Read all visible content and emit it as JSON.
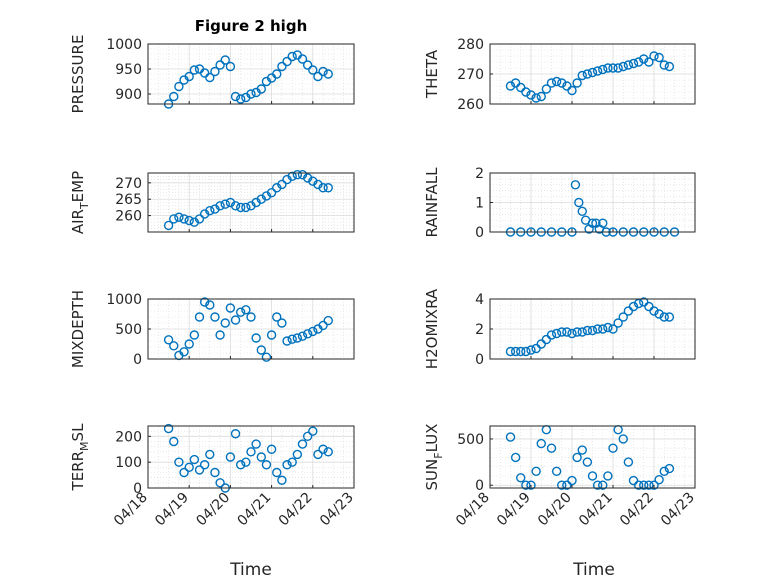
{
  "figure": {
    "title": "Figure 2 high",
    "xlabel": "Time",
    "x_tick_labels": [
      "04/18",
      "04/19",
      "04/20",
      "04/21",
      "04/22",
      "04/23"
    ],
    "marker": "open-circle",
    "series_color": "#0072BD"
  },
  "chart_data": [
    {
      "type": "scatter",
      "panel": "left-row-1",
      "ylabel": "PRESSURE",
      "ylim": [
        880,
        1000
      ],
      "yticks": [
        900,
        950,
        1000
      ],
      "grid": true,
      "x": [
        "04/18 12:00",
        "04/18 15:00",
        "04/18 18:00",
        "04/18 21:00",
        "04/19 00:00",
        "04/19 03:00",
        "04/19 06:00",
        "04/19 09:00",
        "04/19 12:00",
        "04/19 15:00",
        "04/19 18:00",
        "04/19 21:00",
        "04/20 00:00",
        "04/20 03:00",
        "04/20 06:00",
        "04/20 09:00",
        "04/20 12:00",
        "04/20 15:00",
        "04/20 18:00",
        "04/20 21:00",
        "04/21 00:00",
        "04/21 03:00",
        "04/21 06:00",
        "04/21 09:00",
        "04/21 12:00",
        "04/21 15:00",
        "04/21 18:00",
        "04/21 21:00",
        "04/22 00:00",
        "04/22 03:00",
        "04/22 06:00",
        "04/22 09:00"
      ],
      "y": [
        880,
        895,
        915,
        928,
        935,
        948,
        950,
        942,
        933,
        945,
        958,
        968,
        955,
        895,
        890,
        893,
        900,
        903,
        910,
        925,
        932,
        940,
        955,
        965,
        975,
        978,
        970,
        958,
        948,
        935,
        945,
        940
      ]
    },
    {
      "type": "scatter",
      "panel": "right-row-1",
      "ylabel": "THETA",
      "ylim": [
        260,
        280
      ],
      "yticks": [
        260,
        270,
        280
      ],
      "grid": true,
      "x": [
        "04/18 12:00",
        "04/18 15:00",
        "04/18 18:00",
        "04/18 21:00",
        "04/19 00:00",
        "04/19 03:00",
        "04/19 06:00",
        "04/19 09:00",
        "04/19 12:00",
        "04/19 15:00",
        "04/19 18:00",
        "04/19 21:00",
        "04/20 00:00",
        "04/20 03:00",
        "04/20 06:00",
        "04/20 09:00",
        "04/20 12:00",
        "04/20 15:00",
        "04/20 18:00",
        "04/20 21:00",
        "04/21 00:00",
        "04/21 03:00",
        "04/21 06:00",
        "04/21 09:00",
        "04/21 12:00",
        "04/21 15:00",
        "04/21 18:00",
        "04/21 21:00",
        "04/22 00:00",
        "04/22 03:00",
        "04/22 06:00",
        "04/22 09:00"
      ],
      "y": [
        266,
        267,
        265.5,
        264,
        263,
        262,
        262.5,
        265,
        267,
        267.5,
        267,
        266,
        264.5,
        267,
        269.5,
        270,
        270.5,
        271,
        271.5,
        272,
        272,
        272,
        272.5,
        273,
        273.5,
        274,
        275,
        274,
        276,
        275.5,
        273,
        272.5
      ]
    },
    {
      "type": "scatter",
      "panel": "left-row-2",
      "ylabel_parts": [
        "AIR",
        "T",
        "EMP"
      ],
      "ylim": [
        255,
        273
      ],
      "yticks": [
        260,
        265,
        270
      ],
      "grid": true,
      "x": [
        "04/18 12:00",
        "04/18 15:00",
        "04/18 18:00",
        "04/18 21:00",
        "04/19 00:00",
        "04/19 03:00",
        "04/19 06:00",
        "04/19 09:00",
        "04/19 12:00",
        "04/19 15:00",
        "04/19 18:00",
        "04/19 21:00",
        "04/20 00:00",
        "04/20 03:00",
        "04/20 06:00",
        "04/20 09:00",
        "04/20 12:00",
        "04/20 15:00",
        "04/20 18:00",
        "04/20 21:00",
        "04/21 00:00",
        "04/21 03:00",
        "04/21 06:00",
        "04/21 09:00",
        "04/21 12:00",
        "04/21 15:00",
        "04/21 18:00",
        "04/21 21:00",
        "04/22 00:00",
        "04/22 03:00",
        "04/22 06:00",
        "04/22 09:00"
      ],
      "y": [
        257,
        259,
        259.5,
        259,
        258.5,
        258,
        259,
        260.5,
        261.5,
        262,
        263,
        263.5,
        264,
        263,
        262.5,
        262.5,
        263,
        264,
        265,
        266,
        267,
        268.5,
        269.5,
        271,
        272,
        272.5,
        272.5,
        271.5,
        270.5,
        269.5,
        268.5,
        268.5
      ]
    },
    {
      "type": "scatter",
      "panel": "right-row-2",
      "ylabel": "RAINFALL",
      "ylim": [
        0,
        2
      ],
      "yticks": [
        0,
        1,
        2
      ],
      "grid": true,
      "x": [
        "04/18 12:00",
        "04/18 18:00",
        "04/19 00:00",
        "04/19 06:00",
        "04/19 12:00",
        "04/19 18:00",
        "04/20 00:00",
        "04/20 02:00",
        "04/20 04:00",
        "04/20 06:00",
        "04/20 08:00",
        "04/20 10:00",
        "04/20 12:00",
        "04/20 14:00",
        "04/20 16:00",
        "04/20 18:00",
        "04/20 20:00",
        "04/21 00:00",
        "04/21 06:00",
        "04/21 12:00",
        "04/21 18:00",
        "04/22 00:00",
        "04/22 06:00",
        "04/22 12:00"
      ],
      "y": [
        0,
        0,
        0,
        0,
        0,
        0,
        0,
        1.6,
        1.0,
        0.7,
        0.4,
        0.1,
        0.3,
        0.3,
        0.1,
        0.3,
        0,
        0,
        0,
        0,
        0,
        0,
        0,
        0
      ]
    },
    {
      "type": "scatter",
      "panel": "left-row-3",
      "ylabel": "MIXDEPTH",
      "ylim": [
        0,
        1000
      ],
      "yticks": [
        0,
        500,
        1000
      ],
      "grid": true,
      "x": [
        "04/18 12:00",
        "04/18 15:00",
        "04/18 18:00",
        "04/18 21:00",
        "04/19 00:00",
        "04/19 03:00",
        "04/19 06:00",
        "04/19 09:00",
        "04/19 12:00",
        "04/19 15:00",
        "04/19 18:00",
        "04/19 21:00",
        "04/20 00:00",
        "04/20 03:00",
        "04/20 06:00",
        "04/20 09:00",
        "04/20 12:00",
        "04/20 15:00",
        "04/20 18:00",
        "04/20 21:00",
        "04/21 00:00",
        "04/21 03:00",
        "04/21 06:00",
        "04/21 09:00",
        "04/21 12:00",
        "04/21 15:00",
        "04/21 18:00",
        "04/21 21:00",
        "04/22 00:00",
        "04/22 03:00",
        "04/22 06:00",
        "04/22 09:00"
      ],
      "y": [
        320,
        220,
        60,
        120,
        250,
        400,
        700,
        950,
        900,
        700,
        400,
        600,
        850,
        650,
        780,
        820,
        700,
        350,
        150,
        30,
        400,
        700,
        600,
        300,
        330,
        350,
        380,
        420,
        460,
        500,
        560,
        640
      ]
    },
    {
      "type": "scatter",
      "panel": "right-row-3",
      "ylabel": "H2OMIXRA",
      "ylim": [
        0,
        4
      ],
      "yticks": [
        0,
        2,
        4
      ],
      "grid": true,
      "x": [
        "04/18 12:00",
        "04/18 15:00",
        "04/18 18:00",
        "04/18 21:00",
        "04/19 00:00",
        "04/19 03:00",
        "04/19 06:00",
        "04/19 09:00",
        "04/19 12:00",
        "04/19 15:00",
        "04/19 18:00",
        "04/19 21:00",
        "04/20 00:00",
        "04/20 03:00",
        "04/20 06:00",
        "04/20 09:00",
        "04/20 12:00",
        "04/20 15:00",
        "04/20 18:00",
        "04/20 21:00",
        "04/21 00:00",
        "04/21 03:00",
        "04/21 06:00",
        "04/21 09:00",
        "04/21 12:00",
        "04/21 15:00",
        "04/21 18:00",
        "04/21 21:00",
        "04/22 00:00",
        "04/22 03:00",
        "04/22 06:00",
        "04/22 09:00"
      ],
      "y": [
        0.5,
        0.5,
        0.5,
        0.5,
        0.6,
        0.7,
        1.0,
        1.3,
        1.6,
        1.7,
        1.8,
        1.8,
        1.7,
        1.8,
        1.8,
        1.9,
        1.9,
        2.0,
        2.0,
        2.1,
        2.0,
        2.4,
        2.8,
        3.2,
        3.5,
        3.7,
        3.8,
        3.5,
        3.2,
        3.0,
        2.8,
        2.8
      ]
    },
    {
      "type": "scatter",
      "panel": "left-row-4",
      "ylabel_parts": [
        "TERR",
        "M",
        "SL"
      ],
      "ylim": [
        0,
        240
      ],
      "yticks": [
        0,
        100,
        200
      ],
      "grid": true,
      "x": [
        "04/18 12:00",
        "04/18 15:00",
        "04/18 18:00",
        "04/18 21:00",
        "04/19 00:00",
        "04/19 03:00",
        "04/19 06:00",
        "04/19 09:00",
        "04/19 12:00",
        "04/19 15:00",
        "04/19 18:00",
        "04/19 21:00",
        "04/20 00:00",
        "04/20 03:00",
        "04/20 06:00",
        "04/20 09:00",
        "04/20 12:00",
        "04/20 15:00",
        "04/20 18:00",
        "04/20 21:00",
        "04/21 00:00",
        "04/21 03:00",
        "04/21 06:00",
        "04/21 09:00",
        "04/21 12:00",
        "04/21 15:00",
        "04/21 18:00",
        "04/21 21:00",
        "04/22 00:00",
        "04/22 03:00",
        "04/22 06:00",
        "04/22 09:00"
      ],
      "y": [
        230,
        180,
        100,
        60,
        80,
        110,
        70,
        90,
        130,
        60,
        20,
        0,
        120,
        210,
        90,
        100,
        140,
        170,
        120,
        90,
        150,
        60,
        30,
        90,
        100,
        130,
        170,
        200,
        220,
        130,
        150,
        140
      ]
    },
    {
      "type": "scatter",
      "panel": "right-row-4",
      "ylabel_parts": [
        "SUN",
        "F",
        "LUX"
      ],
      "ylim": [
        -30,
        640
      ],
      "yticks": [
        0,
        500
      ],
      "grid": true,
      "x": [
        "04/18 12:00",
        "04/18 15:00",
        "04/18 18:00",
        "04/18 21:00",
        "04/19 00:00",
        "04/19 03:00",
        "04/19 06:00",
        "04/19 09:00",
        "04/19 12:00",
        "04/19 15:00",
        "04/19 18:00",
        "04/19 21:00",
        "04/20 00:00",
        "04/20 03:00",
        "04/20 06:00",
        "04/20 09:00",
        "04/20 12:00",
        "04/20 15:00",
        "04/20 18:00",
        "04/20 21:00",
        "04/21 00:00",
        "04/21 03:00",
        "04/21 06:00",
        "04/21 09:00",
        "04/21 12:00",
        "04/21 15:00",
        "04/21 18:00",
        "04/21 21:00",
        "04/22 00:00",
        "04/22 03:00",
        "04/22 06:00",
        "04/22 09:00"
      ],
      "y": [
        520,
        300,
        80,
        0,
        0,
        150,
        450,
        600,
        400,
        150,
        0,
        0,
        50,
        300,
        380,
        250,
        100,
        0,
        0,
        100,
        400,
        600,
        500,
        250,
        50,
        0,
        0,
        0,
        0,
        60,
        150,
        180
      ]
    }
  ]
}
